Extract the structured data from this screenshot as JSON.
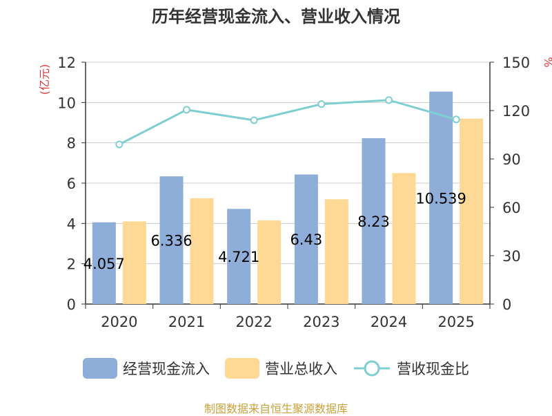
{
  "title": "历年经营现金流入、营业收入情况",
  "footer": "制图数据来自恒生聚源数据库",
  "colors": {
    "cash": "#8eadd8",
    "revenue": "#fdd995",
    "ratio": "#7fcfd2",
    "axis_unit": "#e03a3a"
  },
  "chart_data": {
    "type": "bar",
    "categories": [
      "2020",
      "2021",
      "2022",
      "2023",
      "2024",
      "2025"
    ],
    "y_left": {
      "label": "(亿元)",
      "ylim": [
        0,
        12
      ],
      "ticks": [
        "0",
        "2",
        "4",
        "6",
        "8",
        "10",
        "12"
      ]
    },
    "y_right": {
      "label": "%",
      "ylim": [
        0,
        150
      ],
      "ticks": [
        "0",
        "30",
        "60",
        "90",
        "120",
        "150"
      ]
    },
    "series": [
      {
        "name": "经营现金流入",
        "type": "bar",
        "axis": "left",
        "values": [
          4.057,
          6.336,
          4.721,
          6.43,
          8.23,
          10.539
        ],
        "labels": [
          "4.057",
          "6.336",
          "4.721",
          "6.43",
          "8.23",
          "10.539"
        ]
      },
      {
        "name": "营业总收入",
        "type": "bar",
        "axis": "left",
        "values": [
          4.1,
          5.25,
          4.15,
          5.2,
          6.5,
          9.2
        ]
      },
      {
        "name": "营收现金比",
        "type": "line",
        "axis": "right",
        "values": [
          99,
          120.5,
          114,
          124,
          126.5,
          114.5
        ]
      }
    ],
    "grid": true,
    "legend": "bottom"
  }
}
